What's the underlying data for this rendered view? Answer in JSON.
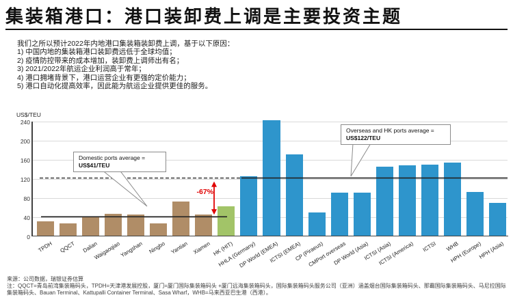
{
  "title": "集装箱港口：港口装卸费上调是主要投资主题",
  "bullets": [
    "我们之所以预计2022年内地港口集装箱装卸费上调，基于以下原因：",
    "1)   中国内地的集装箱港口装卸费远低于全球均值；",
    "2)   疫情防控带来的成本增加，装卸费上调师出有名；",
    "3)   2021/2022年航运企业利润高于常年；",
    "4)   港口拥堵背景下，港口运营企业有更强的定价能力；",
    "5)   港口自动化提高效率，因此能为航运企业提供更佳的服务。"
  ],
  "chart_data": {
    "type": "bar",
    "title": "",
    "ylabel": "US$/TEU",
    "xlabel": "",
    "ylim": [
      0,
      240
    ],
    "yticks": [
      0,
      40,
      80,
      120,
      160,
      200,
      240
    ],
    "grid": "horizontal",
    "categories": [
      "TPDH",
      "QQCT",
      "Dalian",
      "Waigaoqiao",
      "Yangshan",
      "Ningbo",
      "Yantian",
      "Xiamen",
      "HK (HIT)",
      "HHLA (Germany)",
      "DP World (EMEA)",
      "ICTSI (EMEA)",
      "CP (Piraeus)",
      "CMPort overseas",
      "DP World (Asia)",
      "ICTSI (Asia)",
      "ICTSI (America)",
      "ICTSI",
      "WHB",
      "HPH (Europe)",
      "HPH (Asia)"
    ],
    "values": [
      30,
      26,
      39,
      46,
      45,
      26,
      72,
      44,
      61,
      124,
      242,
      170,
      48,
      90,
      90,
      144,
      147,
      149,
      153,
      92,
      68
    ],
    "groups": [
      "domestic",
      "domestic",
      "domestic",
      "domestic",
      "domestic",
      "domestic",
      "domestic",
      "domestic",
      "hk",
      "overseas",
      "overseas",
      "overseas",
      "overseas",
      "overseas",
      "overseas",
      "overseas",
      "overseas",
      "overseas",
      "overseas",
      "overseas",
      "overseas"
    ],
    "bar_colors": {
      "domestic": "#b08d67",
      "hk": "#a2c468",
      "overseas": "#2e95cc"
    },
    "domestic_avg": 41,
    "overseas_avg": 122,
    "annotations": {
      "domestic_line1": "Domestic ports average =",
      "domestic_line2": "US$41/TEU",
      "overseas_line1": "Overseas and HK ports average =",
      "overseas_line2": "US$122/TEU",
      "pct_label": "-67%"
    },
    "line_colors": {
      "average_line": "#222222",
      "dashed_projection": "#666666",
      "arrow": "#e00000"
    }
  },
  "footnotes": {
    "source": "来源：公司数据，瑞银证券估算",
    "note": "注：QQCT=青岛前湾集装箱码头，TPDH=天津港发展控股，厦门=厦门国际集装箱码头 +厦门远海集装箱码头，国际集装箱码头服务公司（亚洲）涵盖烟台国际集装箱码头、那霸国际集装箱码头、马尼拉国际集装箱码头、Bauan Terminal、Kattupalli Container Terminal、Sasa Wharf，WHB=马来西亚巴生港（西港）。"
  }
}
